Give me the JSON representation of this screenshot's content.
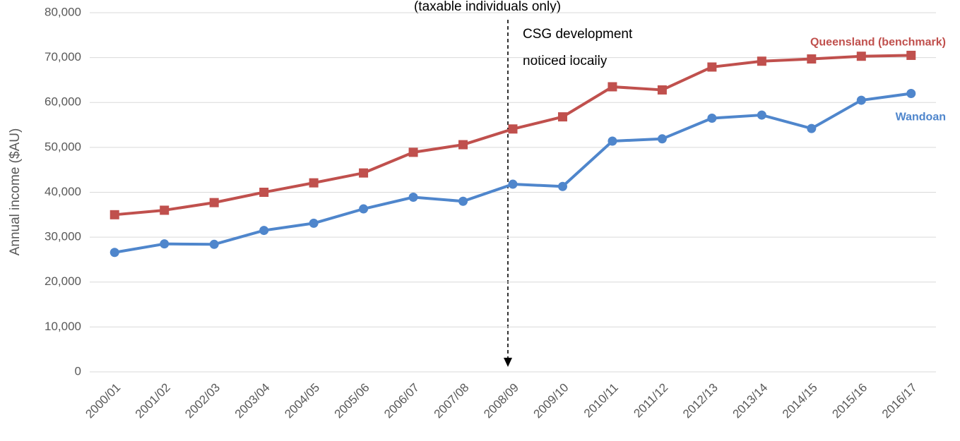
{
  "chart_data": {
    "type": "line",
    "subtitle": "(taxable individuals only)",
    "y_label": "Annual income ($AU)",
    "annotation": [
      "CSG development",
      "noticed locally"
    ],
    "categories": [
      "2000/01",
      "2001/02",
      "2002/03",
      "2003/04",
      "2004/05",
      "2005/06",
      "2006/07",
      "2007/08",
      "2008/09",
      "2009/10",
      "2010/11",
      "2011/12",
      "2012/13",
      "2013/14",
      "2014/15",
      "2015/16",
      "2016/17"
    ],
    "series": [
      {
        "name": "Queensland (benchmark)",
        "color": "#c0504d",
        "marker": "square",
        "values": [
          35000,
          36000,
          37700,
          40000,
          42100,
          44300,
          48900,
          50600,
          54100,
          56800,
          63500,
          62800,
          67900,
          69200,
          69700,
          70300,
          70500
        ]
      },
      {
        "name": "Wandoan",
        "color": "#4f86cc",
        "marker": "circle",
        "values": [
          26600,
          28500,
          28400,
          31500,
          33100,
          36300,
          38900,
          38000,
          41800,
          41300,
          51400,
          51900,
          56500,
          57200,
          54200,
          60500,
          62000
        ]
      }
    ],
    "ylim": [
      0,
      80000
    ],
    "yticks": [
      0,
      {
        "value": 10000,
        "label": "10,000"
      },
      {
        "value": 20000,
        "label": "20,000"
      },
      {
        "value": 30000,
        "label": "30,000"
      },
      {
        "value": 40000,
        "label": "40,000"
      },
      {
        "value": 50000,
        "label": "50,000"
      },
      {
        "value": 60000,
        "label": "60,000"
      },
      {
        "value": 70000,
        "label": "70,000"
      },
      {
        "value": 80000,
        "label": "80,000"
      }
    ],
    "grid": true
  }
}
